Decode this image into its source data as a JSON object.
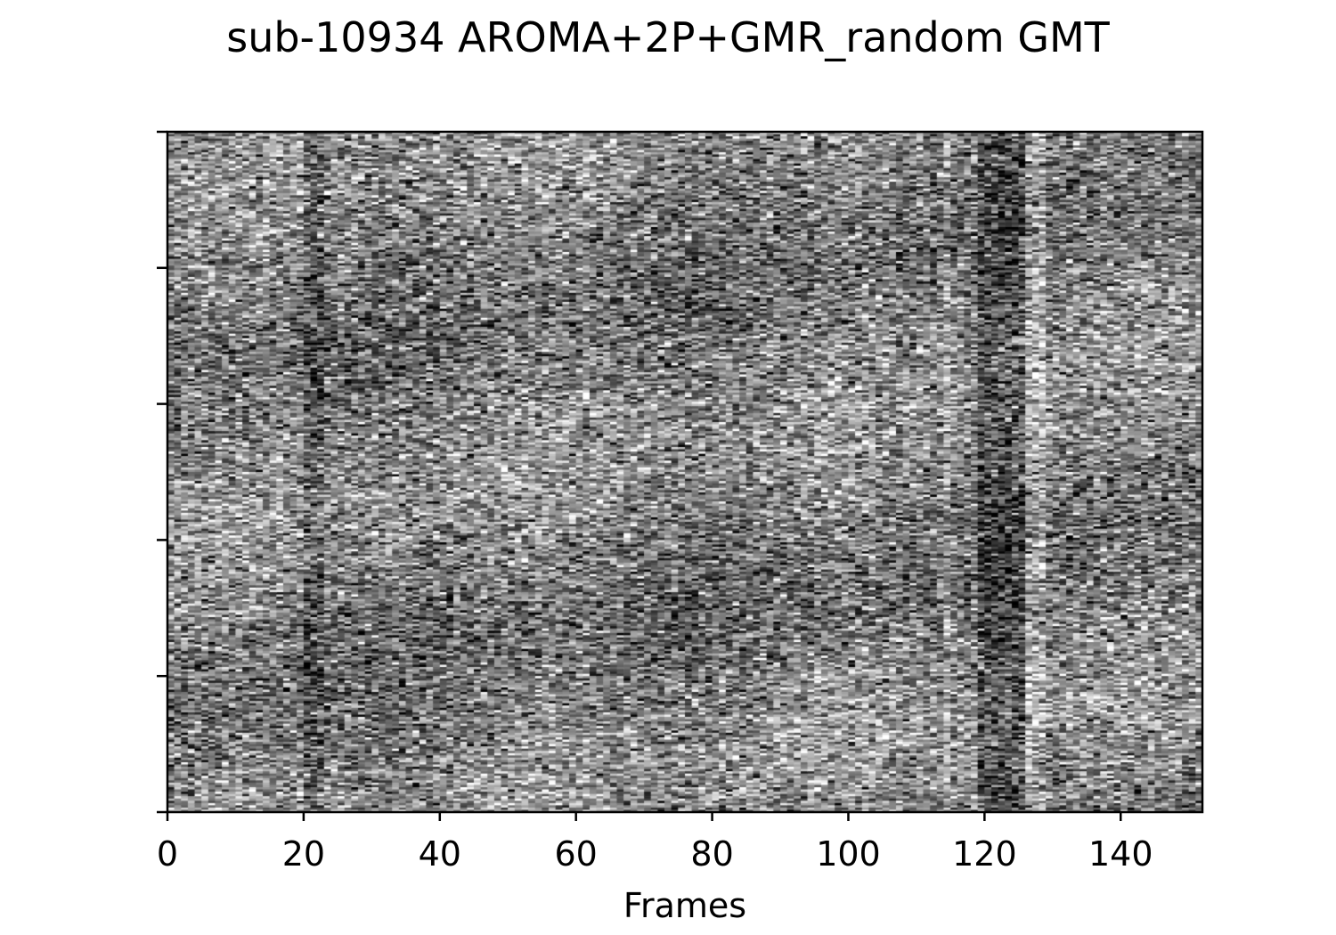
{
  "chart_data": {
    "type": "heatmap",
    "title": "sub-10934 AROMA+2P+GMR_random GMT",
    "xlabel": "Frames",
    "ylabel": "",
    "xlim": [
      0,
      152
    ],
    "x_ticks": [
      0,
      20,
      40,
      60,
      80,
      100,
      120,
      140
    ],
    "x_tick_labels": [
      "0",
      "20",
      "40",
      "60",
      "80",
      "100",
      "120",
      "140"
    ],
    "y_tick_count": 6,
    "y_tick_labels_shown": false,
    "n_frames": 152,
    "n_rows": 300,
    "colormap": "gray",
    "grid": false,
    "legend": "none",
    "notes": {
      "bright_frame_bands": [
        [
          114,
          118
        ],
        [
          126,
          128
        ]
      ],
      "dark_frame_bands": [
        [
          20,
          22
        ],
        [
          115,
          125
        ]
      ]
    }
  }
}
